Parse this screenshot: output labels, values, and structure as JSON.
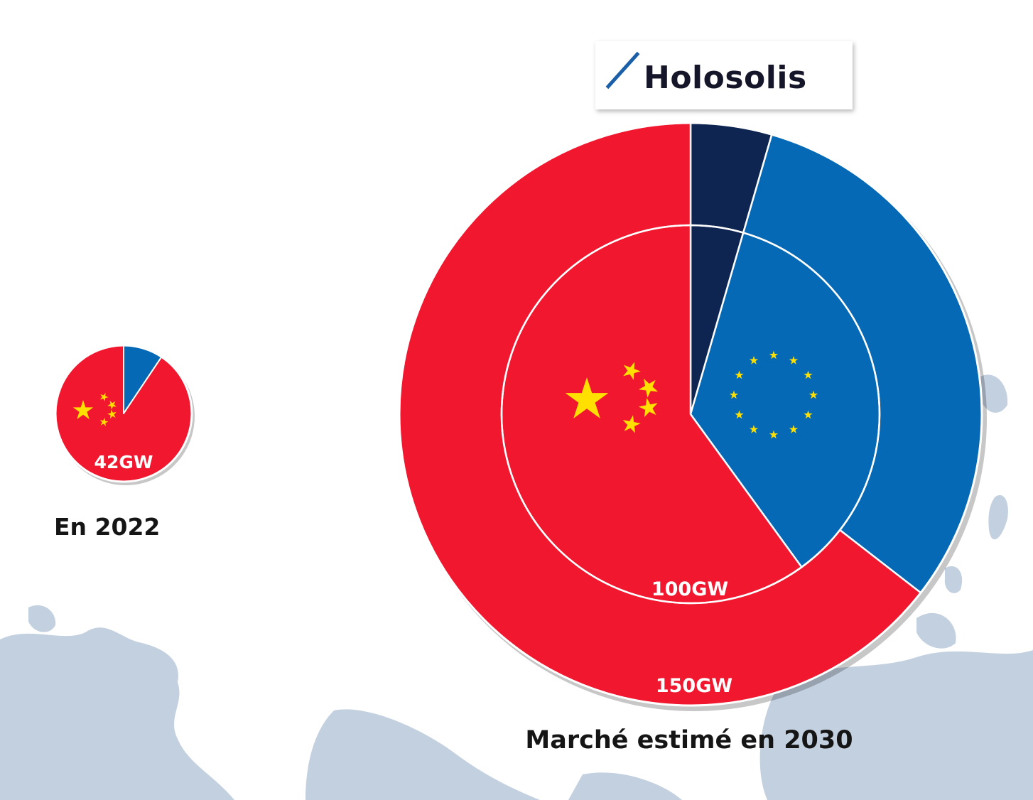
{
  "logo": {
    "text": "Holosolis"
  },
  "captions": {
    "small": "En 2022",
    "large": "Marché estimé en 2030"
  },
  "colors": {
    "china": "#f0172f",
    "europe": "#0569b5",
    "holosolis": "#0d2550",
    "star": "#ffe000",
    "map": "#c3d0e0"
  },
  "chart_data": [
    {
      "type": "pie",
      "caption": "En 2022",
      "total_label": "42GW",
      "slices": [
        {
          "name": "china",
          "share": 0.906,
          "color": "#f0172f",
          "icon": "china-flag-stars"
        },
        {
          "name": "europe",
          "share": 0.094,
          "color": "#0569b5"
        }
      ]
    },
    {
      "type": "pie",
      "caption": "Marché estimé en 2030",
      "rings": [
        {
          "ring": "outer",
          "total_label": "150GW",
          "slices": [
            {
              "name": "holosolis",
              "share": 0.045,
              "color": "#0d2550"
            },
            {
              "name": "europe",
              "share": 0.31,
              "color": "#0569b5"
            },
            {
              "name": "china",
              "share": 0.645,
              "color": "#f0172f"
            }
          ]
        },
        {
          "ring": "inner",
          "total_label": "100GW",
          "slices": [
            {
              "name": "holosolis",
              "share": 0.045,
              "color": "#0d2550"
            },
            {
              "name": "europe",
              "share": 0.355,
              "color": "#0569b5",
              "icon": "eu-flag-stars"
            },
            {
              "name": "china",
              "share": 0.6,
              "color": "#f0172f",
              "icon": "china-flag-stars"
            }
          ]
        }
      ]
    }
  ]
}
